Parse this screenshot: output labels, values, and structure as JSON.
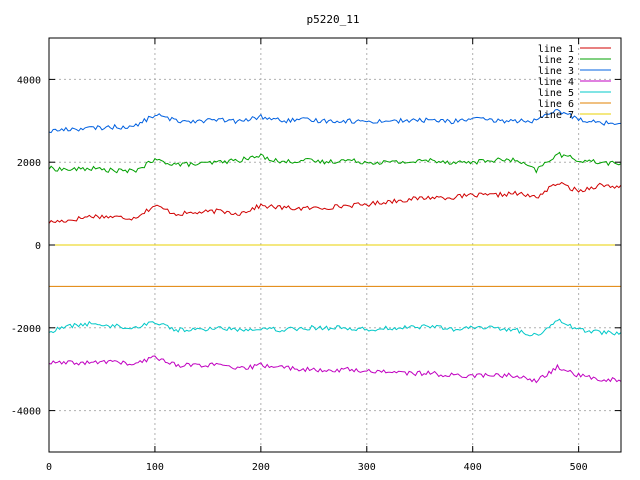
{
  "chart_data": {
    "type": "line",
    "title": "p5220_11",
    "xlabel": "",
    "ylabel": "",
    "xlim": [
      0,
      540
    ],
    "ylim": [
      -5000,
      5000
    ],
    "xticks": [
      0,
      100,
      200,
      300,
      400,
      500
    ],
    "yticks": [
      -4000,
      -2000,
      0,
      2000,
      4000
    ],
    "grid": true,
    "legend_position": "top-right",
    "x": [
      0,
      20,
      40,
      60,
      80,
      100,
      120,
      140,
      160,
      180,
      200,
      220,
      240,
      260,
      280,
      300,
      320,
      340,
      360,
      380,
      400,
      420,
      440,
      460,
      480,
      500,
      520,
      540
    ],
    "series": [
      {
        "name": "line 1",
        "color": "#d00000",
        "values": [
          550,
          600,
          700,
          680,
          650,
          950,
          750,
          780,
          820,
          760,
          950,
          900,
          880,
          900,
          950,
          980,
          1050,
          1100,
          1150,
          1150,
          1200,
          1200,
          1250,
          1150,
          1500,
          1300,
          1450,
          1400
        ]
      },
      {
        "name": "line 2",
        "color": "#00a000",
        "values": [
          1850,
          1820,
          1850,
          1800,
          1780,
          2050,
          1950,
          1950,
          2000,
          2050,
          2150,
          2000,
          2050,
          2000,
          2050,
          2000,
          2000,
          2000,
          2050,
          2000,
          2000,
          2050,
          2050,
          1800,
          2200,
          2050,
          2000,
          1950
        ]
      },
      {
        "name": "line 3",
        "color": "#0060e0",
        "values": [
          2750,
          2800,
          2820,
          2850,
          2850,
          3150,
          3000,
          3000,
          3020,
          2980,
          3100,
          3000,
          3020,
          3000,
          3000,
          2980,
          3000,
          3000,
          3020,
          2980,
          3050,
          3000,
          3000,
          3000,
          3250,
          3050,
          2950,
          2950
        ]
      },
      {
        "name": "line 4",
        "color": "#c000c0",
        "values": [
          -2850,
          -2850,
          -2850,
          -2800,
          -2900,
          -2700,
          -2900,
          -2900,
          -2900,
          -3000,
          -2900,
          -2950,
          -3000,
          -3050,
          -3000,
          -3050,
          -3050,
          -3100,
          -3100,
          -3150,
          -3150,
          -3150,
          -3150,
          -3300,
          -2950,
          -3150,
          -3250,
          -3250
        ]
      },
      {
        "name": "line 5",
        "color": "#00c8c8",
        "values": [
          -2100,
          -1950,
          -1900,
          -1950,
          -2000,
          -1850,
          -2050,
          -2050,
          -2000,
          -2050,
          -2000,
          -2050,
          -2000,
          -2000,
          -2000,
          -2050,
          -2000,
          -2000,
          -1950,
          -2050,
          -2000,
          -2000,
          -2050,
          -2200,
          -1800,
          -2050,
          -2100,
          -2150
        ]
      },
      {
        "name": "line 6",
        "color": "#e08000",
        "values": [
          -1000,
          -1000,
          -1000,
          -1000,
          -1000,
          -1000,
          -1000,
          -1000,
          -1000,
          -1000,
          -1000,
          -1000,
          -1000,
          -1000,
          -1000,
          -1000,
          -1000,
          -1000,
          -1000,
          -1000,
          -1000,
          -1000,
          -1000,
          -1000,
          -1000,
          -1000,
          -1000,
          -1000
        ]
      },
      {
        "name": "line 7",
        "color": "#e8d000",
        "values": [
          0,
          0,
          0,
          0,
          0,
          0,
          0,
          0,
          0,
          0,
          0,
          0,
          0,
          0,
          0,
          0,
          0,
          0,
          0,
          0,
          0,
          0,
          0,
          0,
          0,
          0,
          0,
          0
        ]
      }
    ]
  }
}
